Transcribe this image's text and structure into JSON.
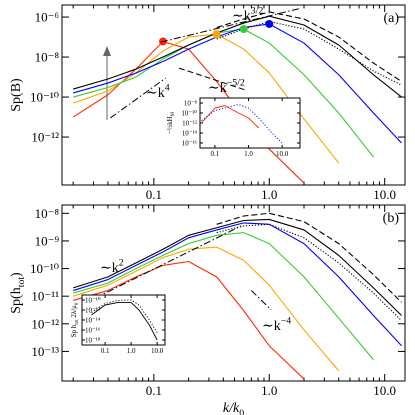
{
  "chart_data": [
    {
      "type": "line",
      "panel_label": "(a)",
      "ylabel": "Sp(B)",
      "log_x": true,
      "log_y": true,
      "xlim": [
        0.016,
        15
      ],
      "ylim": [
        4e-15,
        4e-06
      ],
      "xticks": [
        0.1,
        {
          "value": 1,
          "label": "1.0"
        },
        {
          "value": 10,
          "label": "10.0"
        }
      ],
      "xminorticks": [
        0.02,
        0.03,
        0.04,
        0.05,
        0.06,
        0.07,
        0.08,
        0.09,
        0.2,
        0.3,
        0.4,
        0.5,
        0.6,
        0.7,
        0.8,
        0.9,
        2,
        3,
        4,
        5,
        6,
        7,
        8,
        9
      ],
      "yticks": [
        {
          "value": 1e-06,
          "label": "10⁻⁶"
        },
        {
          "value": 1e-08,
          "label": "10⁻⁸"
        },
        {
          "value": 1e-10,
          "label": "10⁻¹⁰"
        },
        {
          "value": 1e-12,
          "label": "10⁻¹²"
        }
      ],
      "x": [
        0.02,
        0.04,
        0.07,
        0.12,
        0.2,
        0.35,
        0.6,
        1,
        2,
        4,
        8,
        14
      ],
      "series": [
        {
          "color": "#ff2a00",
          "style": "solid",
          "peak_marker": true,
          "values": [
            1e-11,
            1.3e-10,
            2.5e-09,
            6e-08,
            2.5e-08,
            6e-10,
            1e-11,
            2.5e-13,
            5e-15,
            null,
            null,
            null
          ]
        },
        {
          "color": "#ffa500",
          "style": "solid",
          "peak_marker": true,
          "values": [
            5e-11,
            2e-10,
            1.6e-09,
            2e-08,
            1e-07,
            1.4e-07,
            2.5e-08,
            1.6e-09,
            8e-12,
            5e-14,
            null,
            null
          ]
        },
        {
          "color": "#32cd32",
          "style": "solid",
          "peak_marker": true,
          "values": [
            1e-10,
            3e-10,
            1e-09,
            8e-09,
            4e-08,
            1.6e-07,
            2.5e-07,
            5e-08,
            1.3e-09,
            1.6e-11,
            1e-13,
            null
          ]
        },
        {
          "color": "#0000ff",
          "style": "solid",
          "peak_marker": true,
          "values": [
            1.6e-10,
            5e-10,
            1.6e-09,
            6e-09,
            2.5e-08,
            1e-07,
            3e-07,
            4.5e-07,
            5e-08,
            1.3e-09,
            1.6e-11,
            5e-13
          ]
        },
        {
          "color": "#000000",
          "style": "solid",
          "values": [
            2.5e-10,
            8e-10,
            2.5e-09,
            1e-08,
            4e-08,
            1.6e-07,
            5e-07,
            1.1e-06,
            4e-07,
            4e-08,
            1.3e-09,
            1e-10
          ]
        },
        {
          "color": "#000000",
          "style": "dotted",
          "values": [
            null,
            null,
            null,
            null,
            null,
            8e-08,
            2.5e-07,
            6e-07,
            2.5e-07,
            2.5e-08,
            2e-09,
            4e-10
          ]
        },
        {
          "color": "#000000",
          "style": "dashed",
          "values": [
            null,
            null,
            null,
            null,
            null,
            3e-07,
            8e-07,
            1.8e-06,
            8e-07,
            1e-07,
            5e-09,
            6e-10
          ]
        }
      ],
      "guides": [
        {
          "style": "dashdot",
          "x": [
            0.115,
            1.9
          ],
          "y": [
            5.6e-08,
            2.8e-06
          ],
          "label": [
            {
              "t": "∼k"
            },
            {
              "sup": "3/2"
            }
          ]
        },
        {
          "style": "dashdot",
          "x": [
            0.042,
            0.127
          ],
          "y": [
            9e-12,
            9e-10
          ],
          "label": [
            {
              "t": "∼k"
            },
            {
              "sup": "4"
            }
          ]
        },
        {
          "style": "dashed",
          "x": [
            0.165,
            0.63
          ],
          "y": [
            2.8e-09,
            2.2e-10
          ],
          "label": [
            {
              "t": "∼k"
            },
            {
              "sup": "−5/2"
            }
          ]
        }
      ],
      "inset": {
        "type": "line",
        "log_x": true,
        "log_y": true,
        "xlim": [
          0.036,
          34
        ],
        "ylim": [
          1e-17,
          1e-07
        ],
        "ylabel": [
          {
            "t": "−½kH"
          },
          {
            "sub": "M"
          }
        ],
        "xticks": [
          0.1,
          {
            "value": 1,
            "label": "1.0"
          },
          {
            "value": 10,
            "label": "10.0"
          }
        ],
        "yticks": [
          {
            "value": 1e-08,
            "label": "10⁻⁸"
          },
          {
            "value": 1e-10,
            "label": "10⁻¹⁰"
          },
          {
            "value": 1e-12,
            "label": "10⁻¹²"
          },
          {
            "value": 1e-14,
            "label": "10⁻¹⁴"
          },
          {
            "value": 1e-16,
            "label": "10⁻¹⁶"
          }
        ],
        "x": [
          0.04,
          0.1,
          0.2,
          0.5,
          1,
          2,
          5,
          10
        ],
        "series": [
          {
            "color": "#ff2a00",
            "style": "solid",
            "values": [
              1e-12,
              1e-09,
              3e-09,
              1e-10,
              1e-11,
              1e-13,
              null,
              null
            ]
          },
          {
            "color": "#0000ff",
            "style": "dotted",
            "values": [
              3e-12,
              3e-10,
              1e-09,
              5e-09,
              1e-09,
              1e-11,
              1e-14,
              1e-16
            ]
          }
        ]
      }
    },
    {
      "type": "line",
      "panel_label": "(b)",
      "ylabel": [
        {
          "t": "Sp(h"
        },
        {
          "sub": "tot"
        },
        {
          "t": ")"
        }
      ],
      "xlabel": [
        {
          "t": "k/k"
        },
        {
          "sub": "0"
        }
      ],
      "log_x": true,
      "log_y": true,
      "xlim": [
        0.016,
        15
      ],
      "ylim": [
        8.5e-15,
        2e-08
      ],
      "xticks": [
        0.1,
        {
          "value": 1,
          "label": "1.0"
        },
        {
          "value": 10,
          "label": "10.0"
        }
      ],
      "xminorticks": [
        0.02,
        0.03,
        0.04,
        0.05,
        0.06,
        0.07,
        0.08,
        0.09,
        0.2,
        0.3,
        0.4,
        0.5,
        0.6,
        0.7,
        0.8,
        0.9,
        2,
        3,
        4,
        5,
        6,
        7,
        8,
        9
      ],
      "yticks": [
        {
          "value": 1e-08,
          "label": "10⁻⁸"
        },
        {
          "value": 1e-09,
          "label": "10⁻⁹"
        },
        {
          "value": 1e-10,
          "label": "10⁻¹⁰"
        },
        {
          "value": 1e-11,
          "label": "10⁻¹¹"
        },
        {
          "value": 1e-12,
          "label": "10⁻¹²"
        },
        {
          "value": 1e-13,
          "label": "10⁻¹³"
        }
      ],
      "x": [
        0.02,
        0.04,
        0.07,
        0.12,
        0.2,
        0.35,
        0.6,
        1,
        2,
        4,
        8,
        14
      ],
      "series": [
        {
          "color": "#ff2a00",
          "style": "solid",
          "values": [
            7e-12,
            1.6e-11,
            5e-11,
            1.3e-10,
            1.8e-10,
            5e-11,
            3e-12,
            1.6e-13,
            1e-14,
            null,
            null,
            null
          ]
        },
        {
          "color": "#ffa500",
          "style": "solid",
          "values": [
            1e-11,
            2.5e-11,
            8e-11,
            2.5e-10,
            5e-10,
            6e-10,
            2e-10,
            2.5e-11,
            6e-13,
            2e-14,
            null,
            null
          ]
        },
        {
          "color": "#32cd32",
          "style": "solid",
          "values": [
            1.3e-11,
            3e-11,
            1e-10,
            3e-10,
            8e-10,
            1.6e-09,
            2e-09,
            8e-10,
            5e-11,
            1.6e-12,
            5e-14,
            null
          ]
        },
        {
          "color": "#0000ff",
          "style": "solid",
          "values": [
            1.6e-11,
            4e-11,
            1.3e-10,
            4e-10,
            1.3e-09,
            2.5e-09,
            4.5e-09,
            4e-09,
            8e-10,
            5e-11,
            2e-12,
            1.6e-13
          ]
        },
        {
          "color": "#000000",
          "style": "solid",
          "values": [
            2e-11,
            5e-11,
            1.6e-10,
            5e-10,
            1.6e-09,
            3e-09,
            5.5e-09,
            6e-09,
            2.5e-09,
            3e-10,
            2e-11,
            2e-12
          ]
        },
        {
          "color": "#000000",
          "style": "dotted",
          "values": [
            null,
            null,
            null,
            null,
            null,
            2e-09,
            3.5e-09,
            4e-09,
            1.3e-09,
            1.6e-10,
            1.3e-11,
            1.3e-12
          ]
        },
        {
          "color": "#000000",
          "style": "dashed",
          "values": [
            null,
            null,
            null,
            null,
            null,
            4e-09,
            8e-09,
            1e-08,
            5e-09,
            8e-10,
            6e-11,
            6e-12
          ]
        }
      ],
      "guides": [
        {
          "style": "dashdot",
          "x": [
            0.031,
            0.57
          ],
          "y": [
            8.5e-12,
            3.5e-09
          ],
          "label": [
            {
              "t": "∼k"
            },
            {
              "sup": "2"
            }
          ]
        },
        {
          "style": "dashdot",
          "x": [
            0.7,
            1.04
          ],
          "y": [
            1.6e-11,
            3.2e-12
          ],
          "label": [
            {
              "t": "∼k"
            },
            {
              "sup": "−4"
            }
          ]
        }
      ],
      "inset": {
        "type": "line",
        "log_x": true,
        "log_y": true,
        "xlim": [
          0.013,
          20
        ],
        "ylim": [
          1e-19,
          1e-09
        ],
        "ylabel": [
          {
            "t": "Sp h"
          },
          {
            "sub": "tot"
          },
          {
            "t": " 2λ/μ"
          },
          {
            "sub": "0"
          }
        ],
        "xticks": [
          0.1,
          {
            "value": 1,
            "label": "1.0"
          },
          {
            "value": 10,
            "label": "10.0"
          }
        ],
        "yticks": [
          {
            "value": 1e-10,
            "label": "10⁻¹⁰"
          },
          {
            "value": 1e-12,
            "label": "10⁻¹²"
          },
          {
            "value": 1e-14,
            "label": "10⁻¹⁴"
          },
          {
            "value": 1e-16,
            "label": "10⁻¹⁶"
          },
          {
            "value": 1e-18,
            "label": "10⁻¹⁸"
          }
        ],
        "x": [
          0.03,
          0.1,
          0.3,
          1,
          2,
          5,
          10
        ],
        "series": [
          {
            "color": "#000000",
            "style": "solid",
            "values": [
              1e-13,
              1e-11,
              3e-11,
              3e-11,
              1e-12,
              1e-15,
              1e-18
            ]
          },
          {
            "color": "#000000",
            "style": "dotted",
            "values": [
              3e-13,
              2e-11,
              8e-11,
              1e-10,
              1e-11,
              1e-14,
              3e-17
            ]
          }
        ]
      }
    }
  ]
}
